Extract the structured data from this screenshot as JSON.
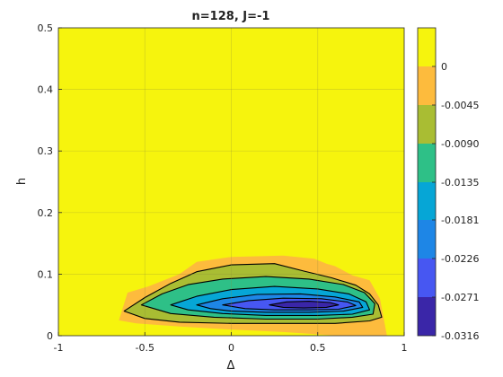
{
  "chart_data": {
    "type": "contour",
    "title": "n=128, J=-1",
    "xlabel": "Δ",
    "ylabel": "h",
    "xlim": [
      -1,
      1
    ],
    "ylim": [
      0,
      0.5
    ],
    "x_ticks": [
      "-1",
      "-0.5",
      "0",
      "0.5",
      "1"
    ],
    "y_ticks": [
      "0",
      "0.1",
      "0.2",
      "0.3",
      "0.4",
      "0.5"
    ],
    "grid": true,
    "colorbar": {
      "placement": "right",
      "tick_labels": [
        "0",
        "-0.0045",
        "-0.0090",
        "-0.0135",
        "-0.0181",
        "-0.0226",
        "-0.0271",
        "-0.0316"
      ],
      "colors": [
        "#f6f40d",
        "#fdbb3d",
        "#a9bd33",
        "#2ec087",
        "#06a6d6",
        "#1e86e6",
        "#4757f2",
        "#3a26a8"
      ]
    },
    "contours": [
      {
        "level": -0.0045,
        "color": "#a9bd33",
        "points": [
          [
            -0.62,
            0.04
          ],
          [
            -0.5,
            0.062
          ],
          [
            -0.35,
            0.085
          ],
          [
            -0.2,
            0.104
          ],
          [
            0,
            0.115
          ],
          [
            0.25,
            0.117
          ],
          [
            0.42,
            0.105
          ],
          [
            0.58,
            0.094
          ],
          [
            0.72,
            0.082
          ],
          [
            0.8,
            0.068
          ],
          [
            0.85,
            0.05
          ],
          [
            0.87,
            0.03
          ],
          [
            0.8,
            0.024
          ],
          [
            0.6,
            0.02
          ],
          [
            0.3,
            0.02
          ],
          [
            0,
            0.02
          ],
          [
            -0.3,
            0.022
          ],
          [
            -0.5,
            0.028
          ]
        ]
      },
      {
        "level": -0.009,
        "color": "#2ec087",
        "points": [
          [
            -0.52,
            0.05
          ],
          [
            -0.4,
            0.068
          ],
          [
            -0.25,
            0.083
          ],
          [
            -0.05,
            0.092
          ],
          [
            0.2,
            0.096
          ],
          [
            0.45,
            0.092
          ],
          [
            0.65,
            0.083
          ],
          [
            0.77,
            0.07
          ],
          [
            0.83,
            0.052
          ],
          [
            0.82,
            0.035
          ],
          [
            0.7,
            0.03
          ],
          [
            0.5,
            0.027
          ],
          [
            0.2,
            0.027
          ],
          [
            -0.1,
            0.03
          ],
          [
            -0.35,
            0.036
          ]
        ]
      },
      {
        "level": -0.0135,
        "color": "#06a6d6",
        "points": [
          [
            -0.35,
            0.05
          ],
          [
            -0.2,
            0.064
          ],
          [
            0,
            0.075
          ],
          [
            0.25,
            0.08
          ],
          [
            0.5,
            0.076
          ],
          [
            0.68,
            0.068
          ],
          [
            0.78,
            0.055
          ],
          [
            0.8,
            0.042
          ],
          [
            0.7,
            0.035
          ],
          [
            0.5,
            0.033
          ],
          [
            0.2,
            0.033
          ],
          [
            -0.05,
            0.036
          ],
          [
            -0.25,
            0.042
          ]
        ]
      },
      {
        "level": -0.0181,
        "color": "#1e86e6",
        "points": [
          [
            -0.2,
            0.05
          ],
          [
            -0.05,
            0.06
          ],
          [
            0.15,
            0.067
          ],
          [
            0.4,
            0.068
          ],
          [
            0.6,
            0.063
          ],
          [
            0.74,
            0.055
          ],
          [
            0.76,
            0.046
          ],
          [
            0.65,
            0.04
          ],
          [
            0.45,
            0.038
          ],
          [
            0.2,
            0.038
          ],
          [
            0,
            0.04
          ],
          [
            -0.12,
            0.044
          ]
        ]
      },
      {
        "level": -0.0226,
        "color": "#4757f2",
        "points": [
          [
            -0.05,
            0.05
          ],
          [
            0.1,
            0.057
          ],
          [
            0.3,
            0.061
          ],
          [
            0.52,
            0.06
          ],
          [
            0.67,
            0.055
          ],
          [
            0.72,
            0.049
          ],
          [
            0.62,
            0.043
          ],
          [
            0.45,
            0.042
          ],
          [
            0.25,
            0.042
          ],
          [
            0.08,
            0.044
          ]
        ]
      },
      {
        "level": -0.0271,
        "color": "#3a26a8",
        "points": [
          [
            0.22,
            0.05
          ],
          [
            0.32,
            0.055
          ],
          [
            0.45,
            0.056
          ],
          [
            0.57,
            0.054
          ],
          [
            0.62,
            0.05
          ],
          [
            0.55,
            0.046
          ],
          [
            0.42,
            0.045
          ],
          [
            0.3,
            0.046
          ]
        ]
      }
    ],
    "zero_region": {
      "color": "#fdbb3d",
      "points": [
        [
          -0.65,
          0.025
        ],
        [
          -0.6,
          0.07
        ],
        [
          -0.48,
          0.08
        ],
        [
          -0.3,
          0.1
        ],
        [
          -0.2,
          0.12
        ],
        [
          0,
          0.128
        ],
        [
          0.3,
          0.13
        ],
        [
          0.48,
          0.125
        ],
        [
          0.55,
          0.117
        ],
        [
          0.6,
          0.113
        ],
        [
          0.7,
          0.098
        ],
        [
          0.8,
          0.09
        ],
        [
          0.86,
          0.06
        ],
        [
          0.9,
          0.0
        ],
        [
          0.62,
          0.0
        ],
        [
          0.3,
          0.006
        ],
        [
          0,
          0.01
        ],
        [
          -0.3,
          0.015
        ],
        [
          -0.55,
          0.02
        ]
      ]
    }
  }
}
